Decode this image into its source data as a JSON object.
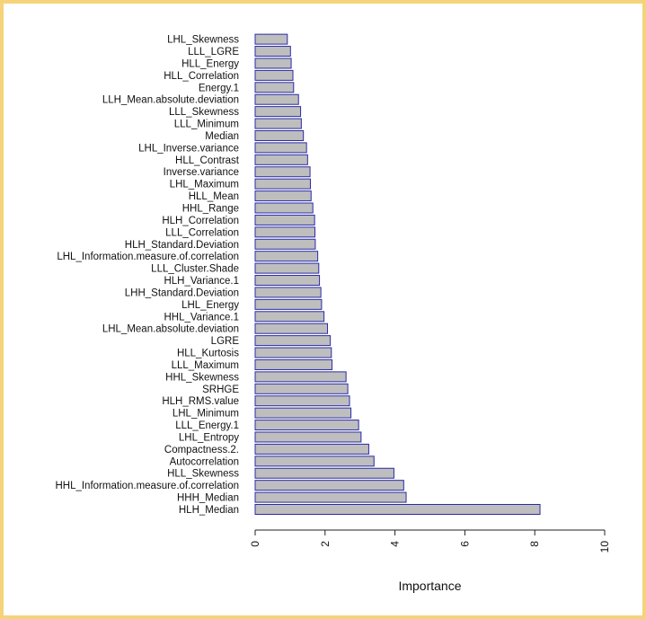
{
  "chart_data": {
    "type": "bar",
    "orientation": "horizontal",
    "categories": [
      "HLH_Median",
      "HHH_Median",
      "HHL_Information.measure.of.correlation",
      "HLL_Skewness",
      "Autocorrelation",
      "Compactness.2.",
      "LHL_Entropy",
      "LLL_Energy.1",
      "LHL_Minimum",
      "HLH_RMS.value",
      "SRHGE",
      "HHL_Skewness",
      "LLL_Maximum",
      "HLL_Kurtosis",
      "LGRE",
      "LHL_Mean.absolute.deviation",
      "HHL_Variance.1",
      "LHL_Energy",
      "LHH_Standard.Deviation",
      "HLH_Variance.1",
      "LLL_Cluster.Shade",
      "LHL_Information.measure.of.correlation",
      "HLH_Standard.Deviation",
      "LLL_Correlation",
      "HLH_Correlation",
      "HHL_Range",
      "HLL_Mean",
      "LHL_Maximum",
      "Inverse.variance",
      "HLL_Contrast",
      "LHL_Inverse.variance",
      "Median",
      "LLL_Minimum",
      "LLL_Skewness",
      "LLH_Mean.absolute.deviation",
      "Energy.1",
      "HLL_Correlation",
      "HLL_Energy",
      "LLL_LGRE",
      "LHL_Skewness"
    ],
    "values": [
      8.15,
      4.32,
      4.25,
      3.97,
      3.4,
      3.25,
      3.03,
      2.96,
      2.74,
      2.7,
      2.65,
      2.6,
      2.2,
      2.18,
      2.15,
      2.07,
      1.97,
      1.9,
      1.88,
      1.84,
      1.82,
      1.79,
      1.72,
      1.71,
      1.7,
      1.65,
      1.6,
      1.58,
      1.57,
      1.5,
      1.47,
      1.38,
      1.32,
      1.3,
      1.24,
      1.1,
      1.08,
      1.03,
      1.01,
      0.92
    ],
    "xlabel": "Importance",
    "xlim": [
      0,
      10
    ],
    "xticks": [
      "0",
      "2",
      "4",
      "6",
      "8",
      "10"
    ],
    "grid": false,
    "colors": {
      "bar_fill": "#bebebe",
      "bar_stroke": "#2a2aa8",
      "axis": "#222222"
    }
  }
}
